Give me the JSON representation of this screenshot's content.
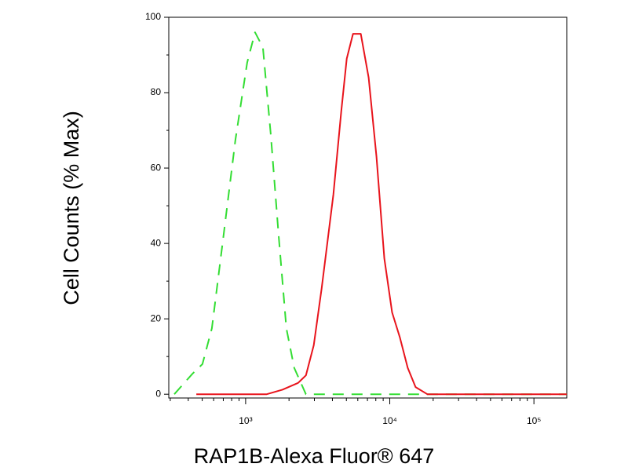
{
  "chart_data": {
    "type": "line",
    "x_label": "RAP1B-Alexa Fluor® 647",
    "y_label": "Cell Counts (% Max)",
    "xscale": "log",
    "xlim": [
      293,
      169000
    ],
    "ylim": [
      -1,
      100
    ],
    "xticks": [
      {
        "value": 1000,
        "label": "10³"
      },
      {
        "value": 10000,
        "label": "10⁴"
      },
      {
        "value": 100000,
        "label": "10⁵"
      }
    ],
    "xminorticks": [
      300,
      400,
      500,
      600,
      700,
      800,
      900,
      2000,
      3000,
      4000,
      5000,
      6000,
      7000,
      8000,
      9000,
      20000,
      30000,
      40000,
      50000,
      60000,
      70000,
      80000,
      90000
    ],
    "yticks": [
      0,
      20,
      40,
      60,
      80,
      100
    ],
    "yminorticks": [
      10,
      30,
      50,
      70,
      90
    ],
    "series": [
      {
        "color": "#33dd33",
        "line_style": "dashed",
        "x": [
          320,
          427,
          502,
          583,
          705,
          850,
          1025,
          1162,
          1317,
          1494,
          1692,
          1918,
          2173,
          2619,
          5000,
          20000,
          100000,
          169000
        ],
        "values": [
          0,
          5.4,
          8,
          17.5,
          42.5,
          67.5,
          88,
          96,
          92,
          69,
          42.5,
          17.5,
          7,
          0,
          0,
          0,
          0,
          0
        ]
      },
      {
        "color": "#e8141c",
        "line_style": "solid",
        "x": [
          455,
          1402,
          1800,
          2311,
          2619,
          2970,
          3366,
          4063,
          4605,
          5027,
          5556,
          6296,
          7135,
          8087,
          9164,
          10380,
          11770,
          13330,
          15110,
          18230,
          169000
        ],
        "values": [
          0,
          0,
          1.2,
          3,
          5,
          13,
          28,
          53,
          75,
          89,
          95.6,
          95.6,
          84,
          63,
          36,
          21.7,
          15,
          7,
          1.9,
          0,
          0
        ]
      }
    ]
  }
}
